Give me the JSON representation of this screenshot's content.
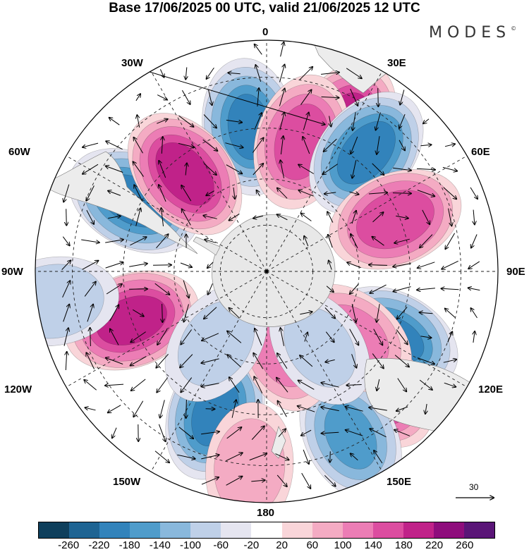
{
  "title": "Base 17/06/2025 00 UTC, valid 21/06/2025 12 UTC",
  "logo": "MODES",
  "logo_mark": "©",
  "longitude_labels": {
    "deg0": "0",
    "deg30e": "30E",
    "deg60e": "60E",
    "deg90e": "90E",
    "deg120e": "120E",
    "deg150e": "150E",
    "deg180": "180",
    "deg150w": "150W",
    "deg120w": "120W",
    "deg90w": "90W",
    "deg60w": "60W",
    "deg30w": "30W"
  },
  "wind_scale_label": "30",
  "colorbar": {
    "colors": [
      "#0e3f5c",
      "#1e6493",
      "#3283bb",
      "#4f9ccb",
      "#89b8dc",
      "#bfd0e8",
      "#e5e5f0",
      "#ffffff",
      "#f9d5d9",
      "#f4abc3",
      "#ec7db5",
      "#dc4da0",
      "#c02289",
      "#8e0d7c",
      "#5a1577"
    ],
    "labels": [
      "-260",
      "-220",
      "-180",
      "-140",
      "-100",
      "-60",
      "-20",
      "20",
      "60",
      "100",
      "140",
      "180",
      "220",
      "260"
    ]
  },
  "anomaly_centers": [
    {
      "bearing": 28,
      "dist": 0.71,
      "value": 200
    },
    {
      "bearing": 353,
      "dist": 0.63,
      "value": -180
    },
    {
      "bearing": 15,
      "dist": 0.58,
      "value": 160
    },
    {
      "bearing": 40,
      "dist": 0.67,
      "value": -200
    },
    {
      "bearing": 68,
      "dist": 0.6,
      "value": 170
    },
    {
      "bearing": 118,
      "dist": 0.62,
      "value": -180
    },
    {
      "bearing": 137,
      "dist": 0.69,
      "value": 180
    },
    {
      "bearing": 153,
      "dist": 0.8,
      "value": -140
    },
    {
      "bearing": 200,
      "dist": 0.65,
      "value": -190
    },
    {
      "bearing": 165,
      "dist": 0.33,
      "value": 120
    },
    {
      "bearing": 250,
      "dist": 0.62,
      "value": 200
    },
    {
      "bearing": 298,
      "dist": 0.65,
      "value": -200
    },
    {
      "bearing": 320,
      "dist": 0.55,
      "value": 200
    },
    {
      "bearing": 262,
      "dist": 0.93,
      "value": -90
    },
    {
      "bearing": 128,
      "dist": 0.47,
      "value": 110
    },
    {
      "bearing": 215,
      "dist": 0.38,
      "value": -70
    },
    {
      "bearing": 145,
      "dist": 0.4,
      "value": -60
    },
    {
      "bearing": 185,
      "dist": 0.85,
      "value": 80
    }
  ]
}
